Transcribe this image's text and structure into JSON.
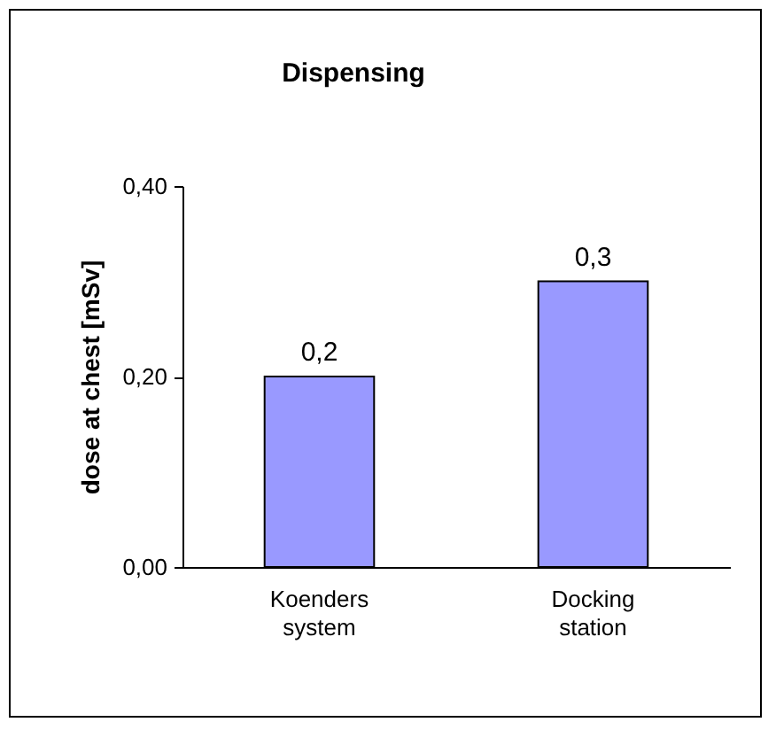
{
  "chart_data": {
    "type": "bar",
    "title": "Dispensing",
    "ylabel": "dose at chest [mSv]",
    "categories": [
      "Koenders system",
      "Docking station"
    ],
    "values": [
      0.2,
      0.3
    ],
    "color": "#9999ff",
    "value_labels": [
      "0,2",
      "0,3"
    ],
    "ylim": [
      0,
      0.4
    ],
    "yticks": [
      {
        "value": 0,
        "label": "0,00"
      },
      {
        "value": 0.2,
        "label": "0,20"
      },
      {
        "value": 0.4,
        "label": "0,40"
      }
    ],
    "grid": false
  }
}
